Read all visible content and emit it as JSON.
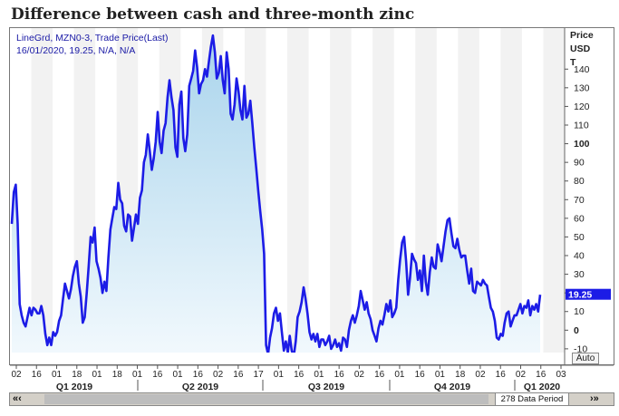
{
  "title": "Difference between cash and three-month zinc",
  "legend": {
    "line1": "LineGrd, MZN0-3, Trade Price(Last)",
    "line2": "16/01/2020, 19.25, N/A, N/A"
  },
  "axis": {
    "y_label_lines": [
      "Price",
      "USD",
      "T"
    ],
    "current_value_label": "19.25"
  },
  "controls": {
    "auto_label": "Auto",
    "nav_left": "«‹",
    "nav_right": "›»",
    "period_label": "278 Data Period"
  },
  "colors": {
    "line": "#1c1ce6",
    "fill_top": "#a9d4ec",
    "fill_bottom": "#f2f9fd",
    "band": "#f2f2f2",
    "value_tag": "#1c1ce6"
  },
  "chart_data": {
    "type": "area",
    "title": "Difference between cash and three-month zinc",
    "ylabel": "Price USD T",
    "ylim": [
      -12,
      162
    ],
    "y_ticks": [
      -10,
      0,
      10,
      20,
      30,
      40,
      50,
      60,
      70,
      80,
      90,
      100,
      110,
      120,
      130,
      140
    ],
    "y_bold_ticks": [
      0,
      100
    ],
    "x_tick_labels": [
      "02",
      "16",
      "01",
      "18",
      "01",
      "18",
      "01",
      "16",
      "01",
      "16",
      "02",
      "16",
      "17",
      "01",
      "16",
      "01",
      "16",
      "02",
      "16",
      "01",
      "16",
      "01",
      "18",
      "02",
      "16",
      "02",
      "16",
      "03"
    ],
    "quarters": [
      "Q1 2019",
      "Q2 2019",
      "Q3 2019",
      "Q4 2019",
      "Q1 2020"
    ],
    "last_value": 19.25,
    "grid": false,
    "values": [
      57,
      74,
      78,
      57,
      14,
      8,
      4,
      2,
      7,
      12,
      8,
      12,
      11,
      9,
      9,
      13,
      8,
      -2,
      -8,
      -4,
      -8,
      -1,
      -3,
      -1,
      5,
      8,
      17,
      25,
      21,
      17,
      22,
      29,
      34,
      37,
      25,
      18,
      4,
      7,
      20,
      34,
      50,
      47,
      55,
      37,
      33,
      28,
      20,
      26,
      21,
      39,
      54,
      60,
      66,
      65,
      79,
      70,
      68,
      56,
      53,
      62,
      61,
      48,
      55,
      62,
      57,
      71,
      75,
      90,
      94,
      105,
      96,
      86,
      92,
      101,
      117,
      101,
      95,
      107,
      111,
      125,
      134,
      125,
      118,
      98,
      93,
      121,
      128,
      103,
      96,
      105,
      131,
      135,
      139,
      150,
      141,
      127,
      132,
      134,
      140,
      136,
      144,
      152,
      158,
      149,
      135,
      138,
      147,
      134,
      127,
      149,
      140,
      116,
      113,
      121,
      135,
      128,
      118,
      113,
      131,
      114,
      116,
      123,
      111,
      98,
      87,
      75,
      64,
      54,
      41,
      -8,
      -13,
      -4,
      1,
      9,
      12,
      5,
      9,
      -1,
      -11,
      -6,
      -12,
      -3,
      -11,
      -14,
      -6,
      7,
      10,
      15,
      23,
      17,
      9,
      -1,
      -5,
      -2,
      -6,
      -2,
      -9,
      -5,
      -5,
      -8,
      -6,
      -3,
      -10,
      -8,
      -5,
      -9,
      -7,
      -11,
      -4,
      -5,
      -9,
      0,
      5,
      8,
      4,
      8,
      13,
      21,
      16,
      11,
      15,
      9,
      6,
      0,
      -3,
      -6,
      1,
      5,
      3,
      8,
      14,
      10,
      16,
      7,
      9,
      12,
      27,
      38,
      47,
      50,
      37,
      19,
      28,
      41,
      38,
      36,
      27,
      32,
      21,
      40,
      26,
      19,
      31,
      39,
      34,
      33,
      46,
      42,
      37,
      45,
      53,
      59,
      60,
      52,
      45,
      44,
      49,
      43,
      39,
      40,
      40,
      32,
      25,
      33,
      21,
      20,
      26,
      25,
      24,
      27,
      25,
      24,
      18,
      12,
      10,
      5,
      -4,
      -5,
      -2,
      -3,
      4,
      9,
      10,
      2,
      5,
      8,
      8,
      11,
      14,
      9,
      13,
      12,
      16,
      8,
      13,
      11,
      14,
      10,
      19
    ]
  }
}
